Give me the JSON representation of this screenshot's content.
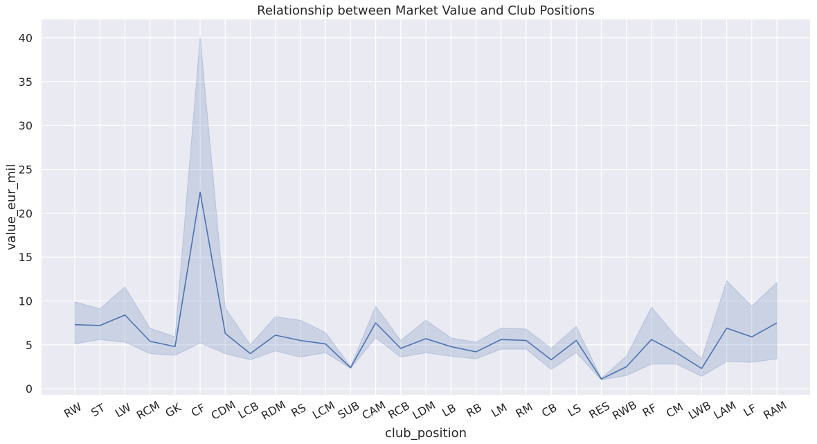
{
  "chart_data": {
    "type": "line",
    "title": "Relationship between Market Value and Club Positions",
    "xlabel": "club_position",
    "ylabel": "value_eur_mil",
    "categories": [
      "RW",
      "ST",
      "LW",
      "RCM",
      "GK",
      "CF",
      "CDM",
      "LCB",
      "RDM",
      "RS",
      "LCM",
      "SUB",
      "CAM",
      "RCB",
      "LDM",
      "LB",
      "RB",
      "LM",
      "RM",
      "CB",
      "LS",
      "RES",
      "RWB",
      "RF",
      "CM",
      "LWB",
      "LAM",
      "LF",
      "RAM"
    ],
    "series": [
      {
        "values": [
          7.3,
          7.2,
          8.4,
          5.4,
          4.8,
          22.4,
          6.3,
          4.0,
          6.1,
          5.5,
          5.1,
          2.4,
          7.5,
          4.6,
          5.7,
          4.8,
          4.2,
          5.6,
          5.5,
          3.3,
          5.5,
          1.1,
          2.5,
          5.6,
          4.1,
          2.3,
          6.9,
          5.9,
          7.5
        ],
        "ci_lower": [
          5.1,
          5.6,
          5.3,
          4.0,
          3.8,
          5.2,
          4.0,
          3.3,
          4.3,
          3.6,
          4.1,
          2.3,
          5.8,
          3.6,
          4.1,
          3.7,
          3.4,
          4.5,
          4.5,
          2.2,
          4.1,
          1.0,
          1.5,
          2.8,
          2.8,
          1.4,
          3.1,
          3.0,
          3.4
        ],
        "ci_upper": [
          9.9,
          9.1,
          11.6,
          6.9,
          5.9,
          40.1,
          9.2,
          5.0,
          8.2,
          7.8,
          6.4,
          2.5,
          9.4,
          5.5,
          7.8,
          5.8,
          5.3,
          6.9,
          6.8,
          4.6,
          7.1,
          1.2,
          3.7,
          9.3,
          5.9,
          3.4,
          12.3,
          9.4,
          12.1
        ]
      }
    ],
    "yticks": [
      0,
      5,
      10,
      15,
      20,
      25,
      30,
      35,
      40
    ],
    "ylim": [
      -0.7,
      42.1
    ],
    "grid": true,
    "colors": {
      "line": "#4c72b0",
      "band": "#4c72b0",
      "plot_bg": "#eaeaf2",
      "grid": "#ffffff"
    }
  }
}
